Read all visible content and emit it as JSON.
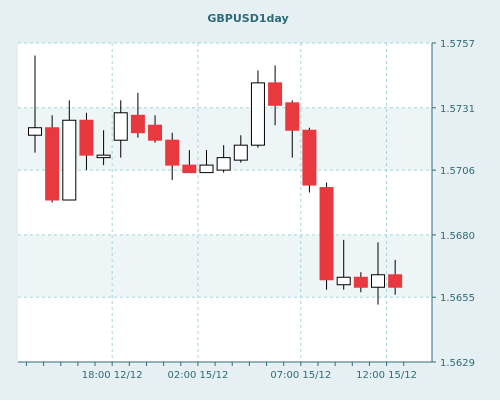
{
  "chart_data": {
    "type": "candlestick",
    "title": "GBPUSD1day",
    "colors": {
      "up_fill": "#ffffff",
      "down_fill": "#e8393f",
      "up_border": "#000000",
      "down_border": "#e8393f",
      "wick": "#000000",
      "grid": "#a8d4d8",
      "axis": "#2e6b7a",
      "title": "#2e6b7a",
      "tick_label": "#2e6b7a",
      "band": "#eef5f6",
      "background": "#ffffff",
      "frame": "#e6f0f2"
    },
    "y_axis": {
      "position": "right",
      "min": 1.5629,
      "max": 1.5757,
      "ticks": [
        1.5757,
        1.5731,
        1.5706,
        1.568,
        1.5655,
        1.5629
      ],
      "tick_labels": [
        "1.5757",
        "1.5731",
        "1.5706",
        "1.5680",
        "1.5655",
        "1.5629"
      ]
    },
    "x_axis": {
      "tick_labels": [
        "18:00 12/12",
        "02:00 15/12",
        "07:00 15/12",
        "12:00 15/12"
      ],
      "tick_after_candle": [
        4,
        9,
        15,
        20
      ]
    },
    "grid": true,
    "candles": [
      {
        "open": 1.572,
        "high": 1.5752,
        "low": 1.5713,
        "close": 1.5723
      },
      {
        "open": 1.5723,
        "high": 1.5728,
        "low": 1.5693,
        "close": 1.5694
      },
      {
        "open": 1.5694,
        "high": 1.5734,
        "low": 1.5694,
        "close": 1.5726
      },
      {
        "open": 1.5726,
        "high": 1.5729,
        "low": 1.5706,
        "close": 1.5712
      },
      {
        "open": 1.5711,
        "high": 1.5722,
        "low": 1.5708,
        "close": 1.5712
      },
      {
        "open": 1.5718,
        "high": 1.5734,
        "low": 1.5711,
        "close": 1.5729
      },
      {
        "open": 1.5728,
        "high": 1.5737,
        "low": 1.5719,
        "close": 1.5721
      },
      {
        "open": 1.5724,
        "high": 1.5728,
        "low": 1.5717,
        "close": 1.5718
      },
      {
        "open": 1.5718,
        "high": 1.5721,
        "low": 1.5702,
        "close": 1.5708
      },
      {
        "open": 1.5708,
        "high": 1.5714,
        "low": 1.5705,
        "close": 1.5705
      },
      {
        "open": 1.5705,
        "high": 1.5714,
        "low": 1.5705,
        "close": 1.5708
      },
      {
        "open": 1.5706,
        "high": 1.5716,
        "low": 1.5705,
        "close": 1.5711
      },
      {
        "open": 1.571,
        "high": 1.572,
        "low": 1.5709,
        "close": 1.5716
      },
      {
        "open": 1.5716,
        "high": 1.5746,
        "low": 1.5715,
        "close": 1.5741
      },
      {
        "open": 1.5741,
        "high": 1.5748,
        "low": 1.5724,
        "close": 1.5732
      },
      {
        "open": 1.5733,
        "high": 1.5734,
        "low": 1.5711,
        "close": 1.5722
      },
      {
        "open": 1.5722,
        "high": 1.5723,
        "low": 1.5697,
        "close": 1.57
      },
      {
        "open": 1.5699,
        "high": 1.5701,
        "low": 1.5658,
        "close": 1.5662
      },
      {
        "open": 1.566,
        "high": 1.5678,
        "low": 1.5658,
        "close": 1.5663
      },
      {
        "open": 1.5663,
        "high": 1.5665,
        "low": 1.5657,
        "close": 1.5659
      },
      {
        "open": 1.5659,
        "high": 1.5677,
        "low": 1.5652,
        "close": 1.5664
      },
      {
        "open": 1.5664,
        "high": 1.567,
        "low": 1.5656,
        "close": 1.5659
      }
    ]
  }
}
